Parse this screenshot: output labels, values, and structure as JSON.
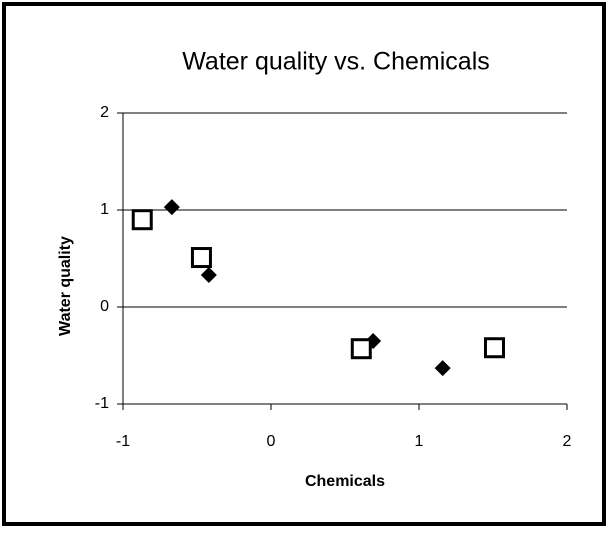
{
  "chart_data": {
    "type": "scatter",
    "title": "Water quality vs. Chemicals",
    "xlabel": "Chemicals",
    "ylabel": "Water quality",
    "xlim": [
      -1,
      2
    ],
    "xticks": [
      -1,
      0,
      1,
      2
    ],
    "ylim": [
      -1,
      2
    ],
    "yticks": [
      -1,
      0,
      1,
      2
    ],
    "grid": true,
    "series": [
      {
        "marker": "diamond",
        "color": "#000000",
        "x": [
          -0.67,
          -0.42,
          0.69,
          1.16
        ],
        "values": [
          1.03,
          0.33,
          -0.35,
          -0.63
        ]
      },
      {
        "marker": "square",
        "color": "#000000",
        "x": [
          -0.87,
          -0.47,
          0.61,
          1.51
        ],
        "values": [
          0.9,
          0.51,
          -0.43,
          -0.42
        ]
      }
    ]
  }
}
